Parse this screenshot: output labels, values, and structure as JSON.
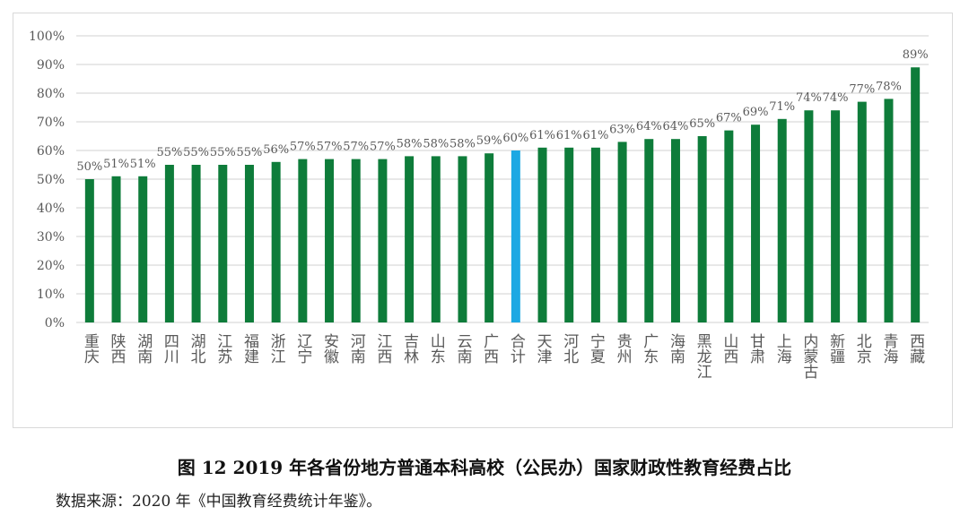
{
  "chart_data": {
    "type": "bar",
    "title": "",
    "xlabel": "",
    "ylabel": "",
    "ylim": [
      0,
      100
    ],
    "yticks": [
      "0%",
      "10%",
      "20%",
      "30%",
      "40%",
      "50%",
      "60%",
      "70%",
      "80%",
      "90%",
      "100%"
    ],
    "grid": true,
    "categories": [
      "重庆",
      "陕西",
      "湖南",
      "四川",
      "湖北",
      "江苏",
      "福建",
      "浙江",
      "辽宁",
      "安徽",
      "河南",
      "江西",
      "吉林",
      "山东",
      "云南",
      "广西",
      "合计",
      "天津",
      "河北",
      "宁夏",
      "贵州",
      "广东",
      "海南",
      "黑龙江",
      "山西",
      "甘肃",
      "上海",
      "内蒙古",
      "新疆",
      "北京",
      "青海",
      "西藏"
    ],
    "values": [
      50,
      51,
      51,
      55,
      55,
      55,
      55,
      56,
      57,
      57,
      57,
      57,
      58,
      58,
      58,
      59,
      60,
      61,
      61,
      61,
      63,
      64,
      64,
      65,
      67,
      69,
      71,
      74,
      74,
      77,
      78,
      89
    ],
    "data_labels": [
      "50%",
      "51%",
      "51%",
      "55%",
      "55%",
      "55%",
      "55%",
      "56%",
      "57%",
      "57%",
      "57%",
      "57%",
      "58%",
      "58%",
      "58%",
      "59%",
      "60%",
      "61%",
      "61%",
      "61%",
      "63%",
      "64%",
      "64%",
      "65%",
      "67%",
      "69%",
      "71%",
      "74%",
      "74%",
      "77%",
      "78%",
      "89%"
    ],
    "highlight_category": "合计",
    "colors": {
      "bar": "#0e7c3a",
      "highlight": "#1ca8e3",
      "grid": "#d9d9d9",
      "label": "#595959"
    }
  },
  "caption": "图 12  2019 年各省份地方普通本科高校（公民办）国家财政性教育经费占比",
  "source": "数据来源：2020 年《中国教育经费统计年鉴》。"
}
